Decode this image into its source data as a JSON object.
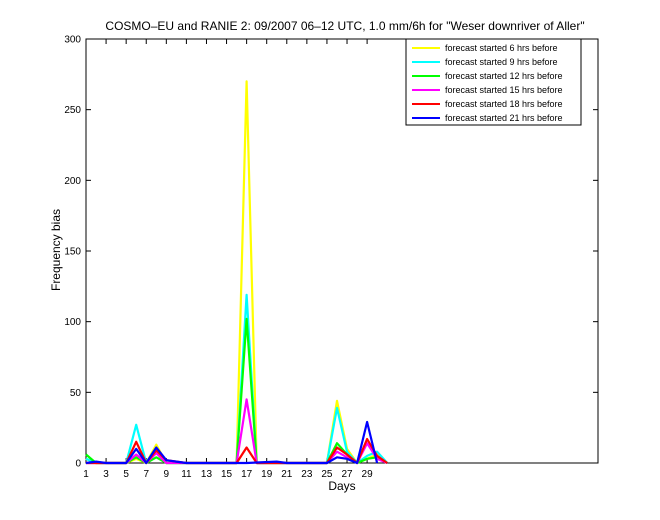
{
  "chart_data": {
    "type": "line",
    "title": "COSMO–EU and RANIE 2: 09/2007 06–12 UTC, 1.0 mm/6h for \"Weser downriver of Aller\"",
    "xlabel": "Days",
    "ylabel": "Frequency bias",
    "xlim": [
      1,
      52
    ],
    "ylim": [
      0,
      300
    ],
    "xticks": [
      1,
      3,
      5,
      7,
      9,
      11,
      13,
      15,
      17,
      19,
      21,
      23,
      25,
      27,
      29
    ],
    "yticks": [
      0,
      50,
      100,
      150,
      200,
      250,
      300
    ],
    "legend_position": "top-right",
    "series": [
      {
        "name": "forecast started 6 hrs before",
        "color": "#ffff00",
        "points": [
          [
            1,
            3
          ],
          [
            2,
            0
          ],
          [
            5,
            0
          ],
          [
            6,
            3
          ],
          [
            7,
            0
          ],
          [
            8,
            13
          ],
          [
            9,
            0
          ],
          [
            16,
            0
          ],
          [
            17,
            270
          ],
          [
            18,
            0
          ],
          [
            25,
            0
          ],
          [
            26,
            44
          ],
          [
            27,
            10
          ],
          [
            28,
            0
          ],
          [
            29,
            3
          ],
          [
            30,
            6
          ],
          [
            31,
            0
          ]
        ]
      },
      {
        "name": "forecast started 9 hrs before",
        "color": "#00ffff",
        "points": [
          [
            1,
            3
          ],
          [
            2,
            0
          ],
          [
            5,
            0
          ],
          [
            6,
            27
          ],
          [
            7,
            0
          ],
          [
            8,
            11
          ],
          [
            9,
            0
          ],
          [
            16,
            0
          ],
          [
            17,
            119
          ],
          [
            18,
            0
          ],
          [
            25,
            0
          ],
          [
            26,
            39
          ],
          [
            27,
            8
          ],
          [
            28,
            0
          ],
          [
            29,
            5
          ],
          [
            30,
            8
          ],
          [
            31,
            0
          ]
        ]
      },
      {
        "name": "forecast started 12 hrs before",
        "color": "#00ff00",
        "points": [
          [
            1,
            6
          ],
          [
            2,
            0
          ],
          [
            5,
            0
          ],
          [
            6,
            4
          ],
          [
            7,
            0
          ],
          [
            8,
            4
          ],
          [
            9,
            0
          ],
          [
            16,
            0
          ],
          [
            17,
            102
          ],
          [
            18,
            0
          ],
          [
            25,
            0
          ],
          [
            26,
            14
          ],
          [
            27,
            6
          ],
          [
            28,
            0
          ],
          [
            29,
            3
          ],
          [
            30,
            4
          ],
          [
            31,
            0
          ]
        ]
      },
      {
        "name": "forecast started 15 hrs before",
        "color": "#ff00ff",
        "points": [
          [
            1,
            0
          ],
          [
            5,
            0
          ],
          [
            6,
            6
          ],
          [
            7,
            0
          ],
          [
            8,
            7
          ],
          [
            9,
            0
          ],
          [
            16,
            0
          ],
          [
            17,
            45
          ],
          [
            18,
            0
          ],
          [
            25,
            0
          ],
          [
            26,
            8
          ],
          [
            27,
            4
          ],
          [
            28,
            0
          ],
          [
            29,
            14
          ],
          [
            30,
            3
          ],
          [
            31,
            0
          ]
        ]
      },
      {
        "name": "forecast started 18 hrs before",
        "color": "#ff0000",
        "points": [
          [
            1,
            0
          ],
          [
            5,
            0
          ],
          [
            6,
            15
          ],
          [
            7,
            0
          ],
          [
            8,
            9
          ],
          [
            9,
            2
          ],
          [
            10,
            1
          ],
          [
            11,
            0
          ],
          [
            16,
            0
          ],
          [
            17,
            11
          ],
          [
            18,
            0
          ],
          [
            25,
            0
          ],
          [
            26,
            11
          ],
          [
            27,
            6
          ],
          [
            28,
            0
          ],
          [
            29,
            17
          ],
          [
            30,
            5
          ],
          [
            31,
            0
          ]
        ]
      },
      {
        "name": "forecast started 21 hrs before",
        "color": "#0000ff",
        "points": [
          [
            1,
            0
          ],
          [
            2,
            1
          ],
          [
            3,
            0
          ],
          [
            5,
            0
          ],
          [
            6,
            10
          ],
          [
            7,
            0
          ],
          [
            8,
            11
          ],
          [
            9,
            2
          ],
          [
            10,
            1
          ],
          [
            11,
            0
          ],
          [
            16,
            0
          ],
          [
            17,
            0
          ],
          [
            20,
            1
          ],
          [
            21,
            0
          ],
          [
            25,
            0
          ],
          [
            26,
            4
          ],
          [
            27,
            3
          ],
          [
            28,
            0
          ],
          [
            29,
            29
          ],
          [
            30,
            0
          ]
        ]
      }
    ]
  }
}
